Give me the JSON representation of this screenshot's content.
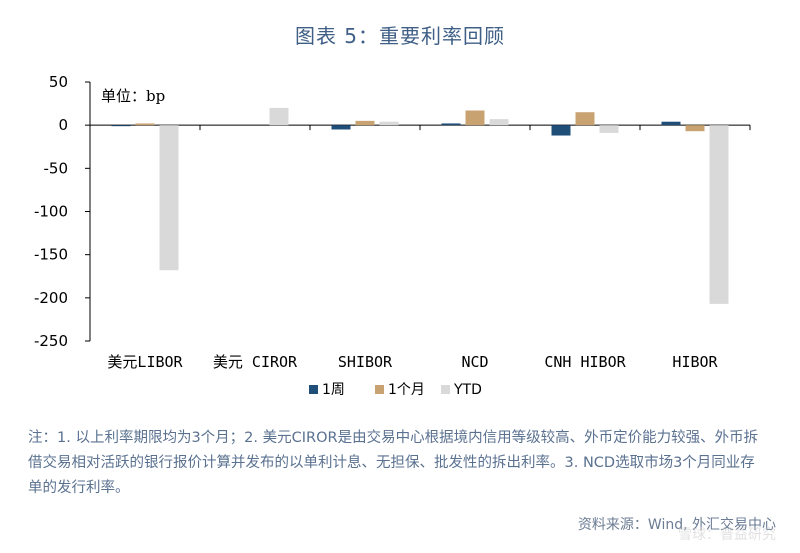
{
  "title": "图表 5：重要利率回顾",
  "chart_data": {
    "type": "bar",
    "unit_label": "单位：bp",
    "categories": [
      "美元LIBOR",
      "美元 CIROR",
      "SHIBOR",
      "NCD",
      "CNH HIBOR",
      "HIBOR"
    ],
    "series": [
      {
        "name": "1周",
        "color": "#1f4e79",
        "values": [
          -1,
          0,
          -5,
          2,
          -12,
          4
        ]
      },
      {
        "name": "1个月",
        "color": "#c8a371",
        "values": [
          2,
          0,
          5,
          17,
          15,
          -7
        ]
      },
      {
        "name": "YTD",
        "color": "#d9d9d9",
        "values": [
          -168,
          20,
          4,
          7,
          -9,
          -207
        ]
      }
    ],
    "y_ticks": [
      50,
      0,
      -50,
      -100,
      -150,
      -200,
      -250
    ],
    "ylim": [
      -250,
      50
    ],
    "legend_position": "bottom-center",
    "grid": false
  },
  "note": "注：1. 以上利率期限均为3个月；2. 美元CIROR是由交易中心根据境内信用等级较高、外币定价能力较强、外币拆借交易相对活跃的银行报价计算并发布的以单利计息、无担保、批发性的拆出利率。3. NCD选取市场3个月同业存单的发行利率。",
  "source": "资料来源：Wind, 外汇交易中心",
  "watermark": "雪球：普益研究"
}
